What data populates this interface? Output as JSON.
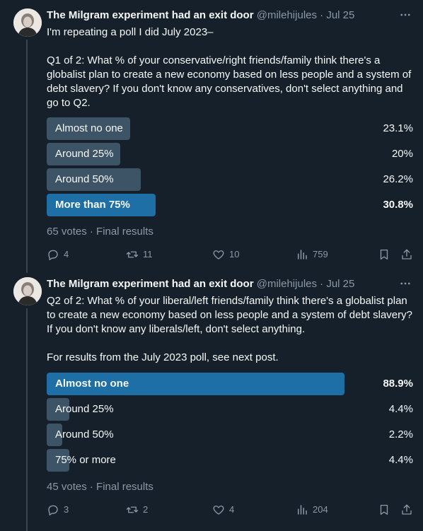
{
  "tweets": [
    {
      "author_name": "The Milgram experiment had an exit door",
      "handle": "@milehijules",
      "separator": "·",
      "date": "Jul 25",
      "text": "I'm repeating a poll I did July 2023–\n\nQ1 of 2: What % of your conservative/right friends/family think there's a globalist plan to create a new economy based on less people and a system of debt slavery? If you don't know any conservatives, don't select anything and go to Q2.",
      "poll": {
        "options": [
          {
            "label": "Almost no one",
            "percent": "23.1%",
            "value": 23.1
          },
          {
            "label": "Around 25%",
            "percent": "20%",
            "value": 20
          },
          {
            "label": "Around 50%",
            "percent": "26.2%",
            "value": 26.2
          },
          {
            "label": "More than 75%",
            "percent": "30.8%",
            "value": 30.8
          }
        ],
        "winner_index": 3,
        "meta": "65 votes · Final results"
      },
      "stats": {
        "replies": "4",
        "reposts": "11",
        "likes": "10",
        "views": "759"
      }
    },
    {
      "author_name": "The Milgram experiment had an exit door",
      "handle": "@milehijules",
      "separator": "·",
      "date": "Jul 25",
      "text": "Q2 of 2: What % of your liberal/left friends/family think there's a globalist plan to create a new economy based on less people and a system of debt slavery? If you don't know any liberals/left, don't select anything.\n\nFor results from the July 2023 poll, see next post.",
      "poll": {
        "options": [
          {
            "label": "Almost no one",
            "percent": "88.9%",
            "value": 88.9
          },
          {
            "label": "Around 25%",
            "percent": "4.4%",
            "value": 4.4
          },
          {
            "label": "Around 50%",
            "percent": "2.2%",
            "value": 2.2
          },
          {
            "label": "75% or more",
            "percent": "4.4%",
            "value": 4.4
          }
        ],
        "winner_index": 0,
        "meta": "45 votes · Final results"
      },
      "stats": {
        "replies": "3",
        "reposts": "2",
        "likes": "4",
        "views": "204"
      }
    }
  ],
  "icons": {
    "more": "more-horizontal-icon",
    "reply": "reply-icon",
    "repost": "repost-icon",
    "like": "heart-icon",
    "views": "views-chart-icon",
    "bookmark": "bookmark-icon",
    "share": "share-icon"
  },
  "colors": {
    "background": "#15202b",
    "text": "#f7f9f9",
    "muted": "#8b98a5",
    "bar": "#3d5466",
    "winner_bar": "#1d6fa5"
  }
}
